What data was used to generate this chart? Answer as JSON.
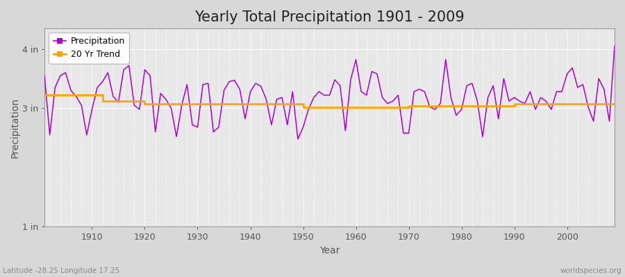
{
  "title": "Yearly Total Precipitation 1901 - 2009",
  "xlabel": "Year",
  "ylabel": "Precipitation",
  "subtitle": "Latitude -28.25 Longitude 17.25",
  "watermark": "worldspecies.org",
  "years": [
    1901,
    1902,
    1903,
    1904,
    1905,
    1906,
    1907,
    1908,
    1909,
    1910,
    1911,
    1912,
    1913,
    1914,
    1915,
    1916,
    1917,
    1918,
    1919,
    1920,
    1921,
    1922,
    1923,
    1924,
    1925,
    1926,
    1927,
    1928,
    1929,
    1930,
    1931,
    1932,
    1933,
    1934,
    1935,
    1936,
    1937,
    1938,
    1939,
    1940,
    1941,
    1942,
    1943,
    1944,
    1945,
    1946,
    1947,
    1948,
    1949,
    1950,
    1951,
    1952,
    1953,
    1954,
    1955,
    1956,
    1957,
    1958,
    1959,
    1960,
    1961,
    1962,
    1963,
    1964,
    1965,
    1966,
    1967,
    1968,
    1969,
    1970,
    1971,
    1972,
    1973,
    1974,
    1975,
    1976,
    1977,
    1978,
    1979,
    1980,
    1981,
    1982,
    1983,
    1984,
    1985,
    1986,
    1987,
    1988,
    1989,
    1990,
    1991,
    1992,
    1993,
    1994,
    1995,
    1996,
    1997,
    1998,
    1999,
    2000,
    2001,
    2002,
    2003,
    2004,
    2005,
    2006,
    2007,
    2008,
    2009
  ],
  "precip": [
    3.55,
    2.55,
    3.35,
    3.55,
    3.6,
    3.3,
    3.2,
    3.05,
    2.55,
    2.98,
    3.35,
    3.45,
    3.6,
    3.2,
    3.1,
    3.65,
    3.72,
    3.05,
    2.98,
    3.65,
    3.55,
    2.6,
    3.25,
    3.15,
    3.0,
    2.52,
    3.05,
    3.4,
    2.72,
    2.68,
    3.4,
    3.42,
    2.6,
    2.68,
    3.3,
    3.45,
    3.47,
    3.32,
    2.82,
    3.28,
    3.42,
    3.37,
    3.15,
    2.72,
    3.15,
    3.18,
    2.72,
    3.28,
    2.48,
    2.68,
    2.98,
    3.18,
    3.28,
    3.22,
    3.22,
    3.48,
    3.38,
    2.62,
    3.48,
    3.82,
    3.28,
    3.22,
    3.62,
    3.58,
    3.18,
    3.08,
    3.12,
    3.22,
    2.58,
    2.58,
    3.28,
    3.32,
    3.28,
    3.02,
    2.98,
    3.08,
    3.82,
    3.18,
    2.88,
    2.98,
    3.38,
    3.42,
    3.12,
    2.52,
    3.18,
    3.38,
    2.82,
    3.5,
    3.12,
    3.18,
    3.12,
    3.08,
    3.28,
    2.98,
    3.18,
    3.12,
    2.98,
    3.28,
    3.28,
    3.58,
    3.68,
    3.35,
    3.4,
    3.02,
    2.78,
    3.5,
    3.32,
    2.78,
    4.05
  ],
  "trend_x": [
    1901,
    1912,
    1912,
    1920,
    1920,
    1930,
    1930,
    1940,
    1940,
    1950,
    1950,
    1960,
    1960,
    1970,
    1970,
    1980,
    1980,
    1990,
    1990,
    2000,
    2000,
    2009
  ],
  "trend_y": [
    3.22,
    3.22,
    3.12,
    3.12,
    3.07,
    3.07,
    3.07,
    3.07,
    3.07,
    3.07,
    3.02,
    3.02,
    3.02,
    3.02,
    3.04,
    3.04,
    3.04,
    3.04,
    3.07,
    3.07,
    3.07,
    3.07
  ],
  "precip_color": "#aa00cc",
  "trend_color": "#ffa500",
  "bg_color": "#d8d8d8",
  "plot_bg_color": "#e8e8e8",
  "grid_color": "#ffffff",
  "ylim_min": 1.0,
  "ylim_max": 4.35,
  "yticks": [
    1.0,
    3.0,
    4.0
  ],
  "ytick_labels": [
    "1 in",
    "3 in",
    "4 in"
  ],
  "title_fontsize": 15,
  "axis_fontsize": 10,
  "tick_fontsize": 9,
  "legend_fontsize": 9
}
